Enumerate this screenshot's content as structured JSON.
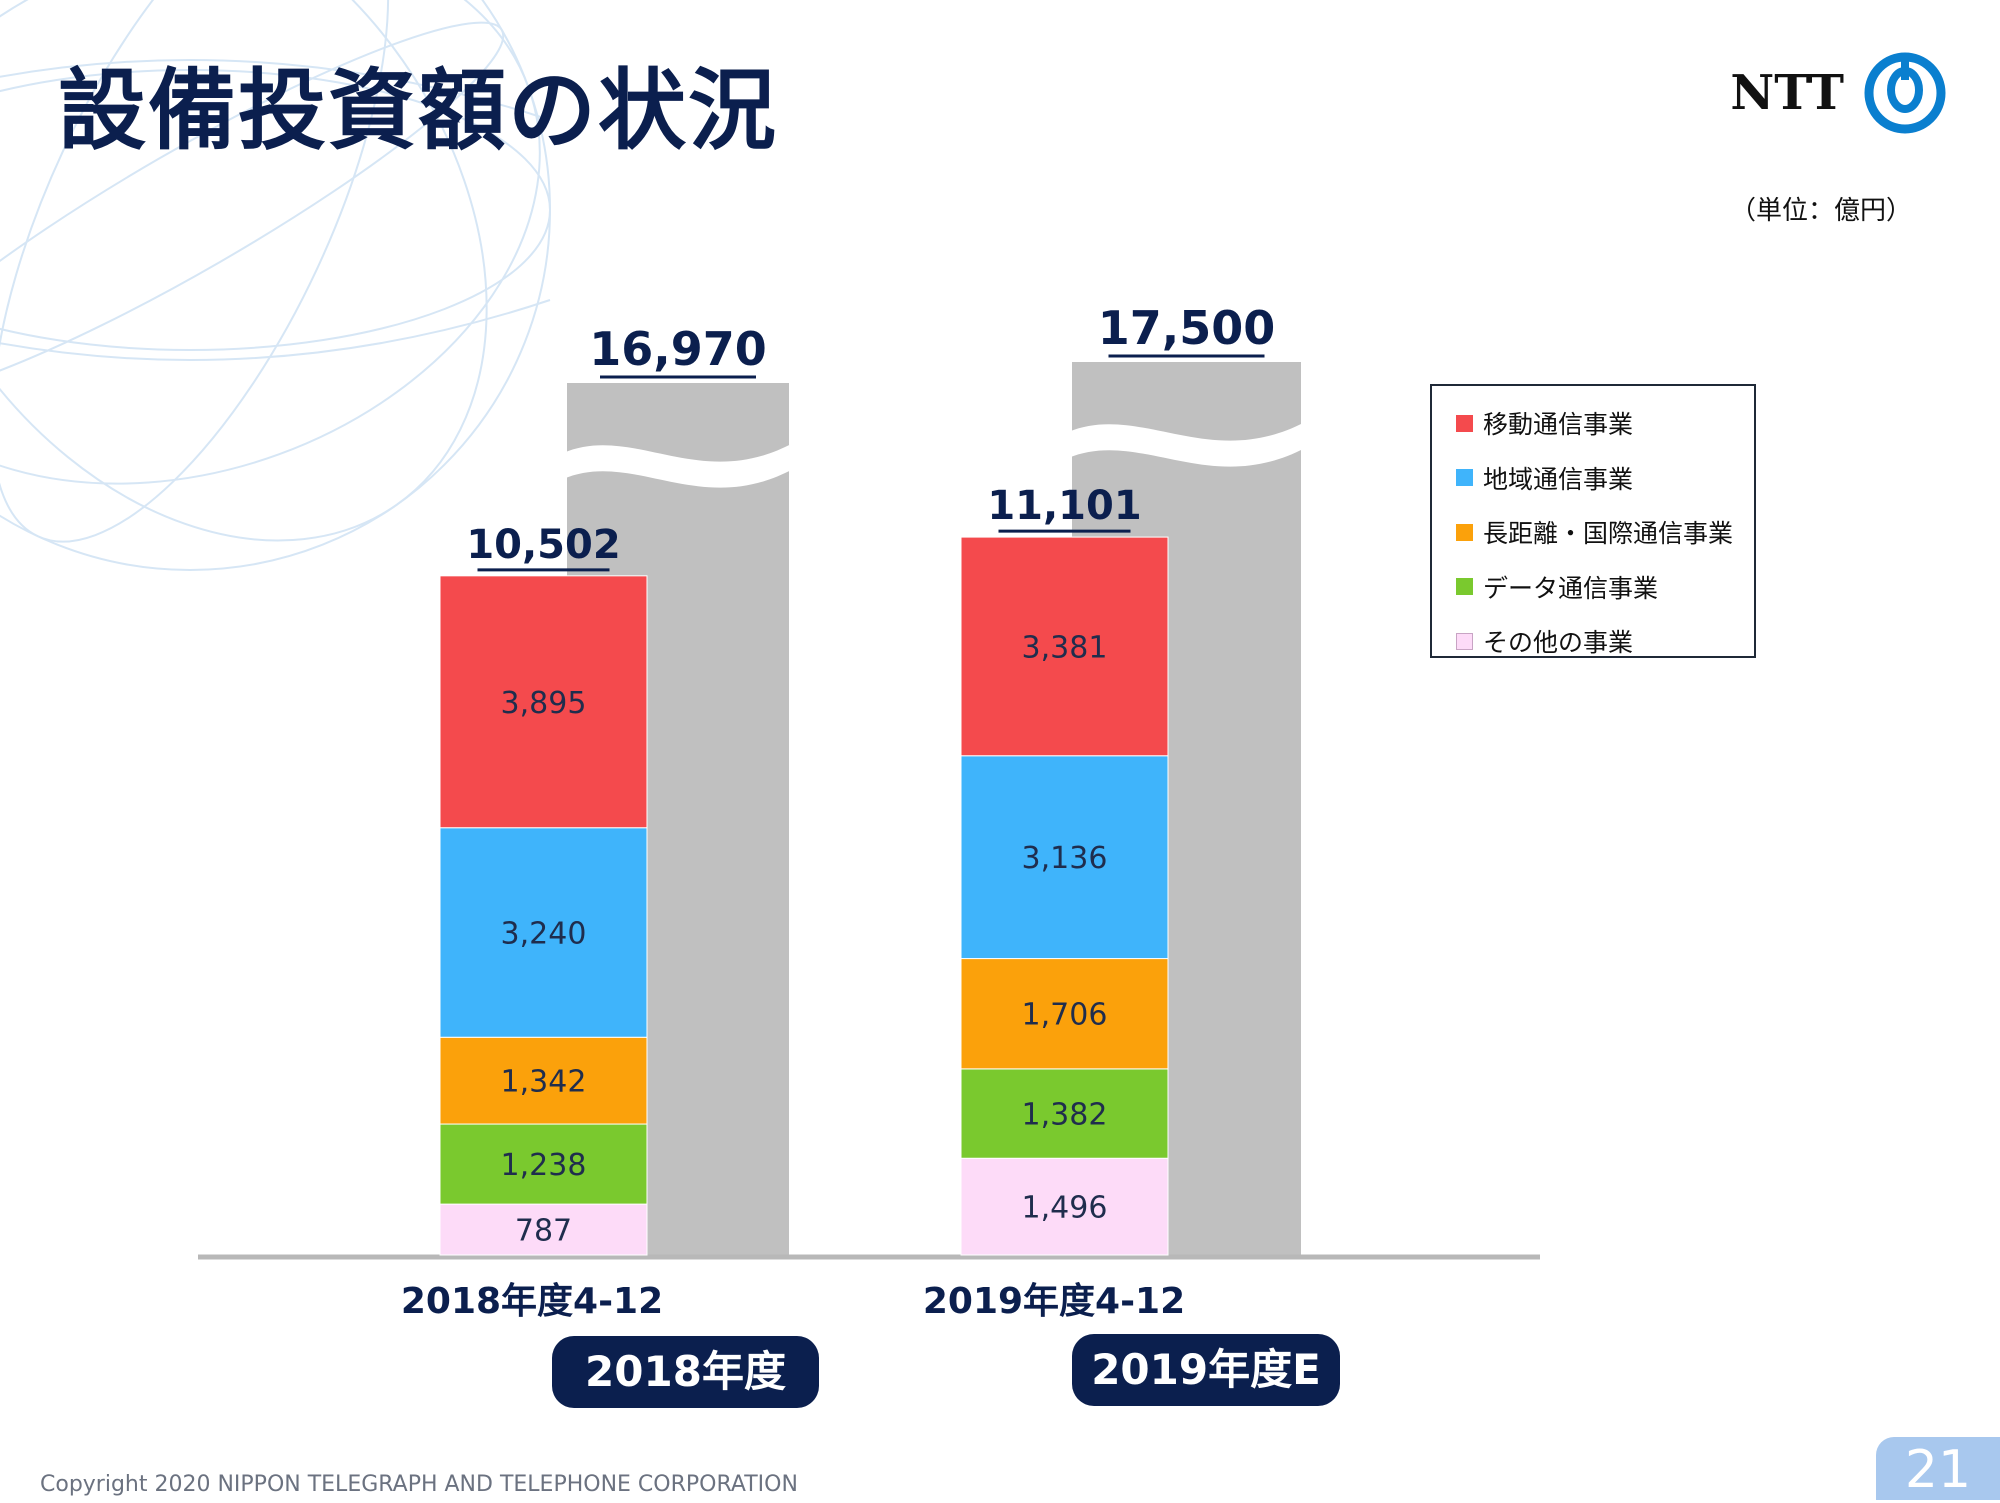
{
  "page": {
    "title": "設備投資額の状況",
    "logo_text": "NTT",
    "unit": "（単位：億円）",
    "copyright": "Copyright 2020 NIPPON TELEGRAPH AND TELEPHONE CORPORATION",
    "page_number": "21"
  },
  "chart_data": {
    "type": "bar",
    "stacked": true,
    "title": "",
    "xlabel": "",
    "ylabel": "",
    "categories": [
      "2018年度4-12",
      "2019年度4-12"
    ],
    "series": [
      {
        "name": "移動通信事業",
        "color": "#f44a4d",
        "values": [
          3895,
          3381
        ]
      },
      {
        "name": "地域通信事業",
        "color": "#3fb4fb",
        "values": [
          3240,
          3136
        ]
      },
      {
        "name": "長距離・国際通信事業",
        "color": "#fba10b",
        "values": [
          1342,
          1706
        ]
      },
      {
        "name": "データ通信事業",
        "color": "#7ac92e",
        "values": [
          1238,
          1382
        ]
      },
      {
        "name": "その他の事業",
        "color": "#fddbf8",
        "values": [
          787,
          1496
        ]
      }
    ],
    "totals": [
      "10,502",
      "11,101"
    ],
    "full_year": [
      {
        "label": "2018年度",
        "total": "16,970",
        "value": 16970
      },
      {
        "label": "2019年度E",
        "total": "17,500",
        "value": 17500
      }
    ],
    "axis_broken": true,
    "legend_position": "right",
    "grid": false
  }
}
